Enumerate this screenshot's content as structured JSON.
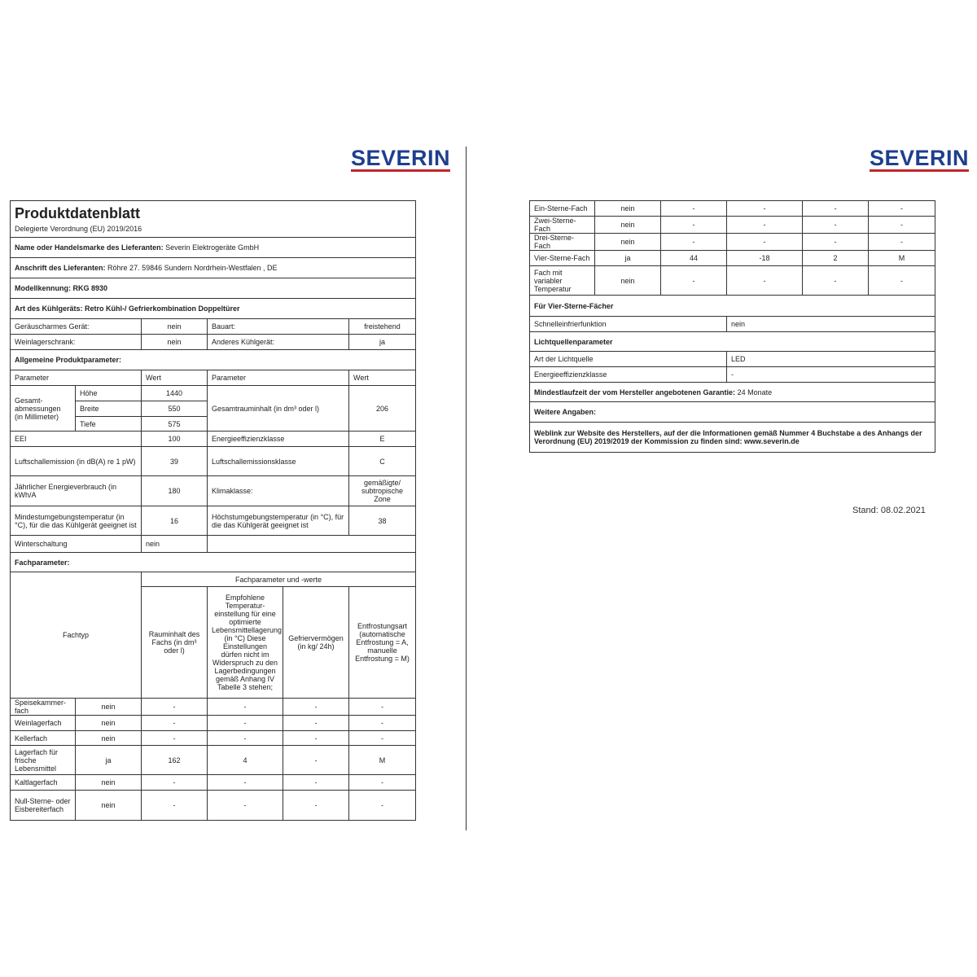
{
  "brand": "SEVERIN",
  "colors": {
    "logo_text": "#1d3f8e",
    "logo_underline": "#c0272d"
  },
  "left": {
    "title": "Produktdatenblatt",
    "subtitle": "Delegierte Verordnung (EU) 2019/2016",
    "supplier_label": "Name oder Handelsmarke des Lieferanten:",
    "supplier_value": "Severin Elektrogeräte GmbH",
    "address_label": "Anschrift des Lieferanten:",
    "address_value": "Röhre 27. 59846 Sundern Nordrhein-Westfalen , DE",
    "model": "Modellkennung: RKG 8930",
    "type": "Art des Kühlgeräts: Retro Kühl-/ Gefrierkombination Doppeltürer",
    "r1": [
      "Geräuscharmes Gerät:",
      "nein",
      "Bauart:",
      "freistehend"
    ],
    "r2": [
      "Weinlagerschrank:",
      "nein",
      "Anderes Kühlgerät:",
      "ja"
    ],
    "general": "Allgemeine Produktparameter:",
    "head": [
      "Parameter",
      "Wert",
      "Parameter",
      "Wert"
    ],
    "dims": {
      "label": "Gesamt-abmessungen (in Millimeter)",
      "h": [
        "Höhe",
        "1440"
      ],
      "b": [
        "Breite",
        "550"
      ],
      "t": [
        "Tiefe",
        "575"
      ],
      "vol_label": "Gesamtrauminhalt (in dm³ oder l)",
      "vol": "206"
    },
    "eei": [
      "EEI",
      "100",
      "Energieeffizienzklasse",
      "E"
    ],
    "noise": [
      "Luftschallemission (in dB(A) re 1 pW)",
      "39",
      "Luftschallemissionsklasse",
      "C"
    ],
    "energy": [
      "Jährlicher Energieverbrauch (in kWh/A",
      "180",
      "Klimaklasse:",
      "gemäßigte/ subtropische Zone"
    ],
    "temp": [
      "Mindestumgebungstemperatur (in °C), für die das Kühlgerät geeignet ist",
      "16",
      "Höchstumgebungstemperatur (in °C), für die das Kühlgerät geeignet ist",
      "38"
    ],
    "winter": [
      "Winterschaltung",
      "nein"
    ],
    "fach": "Fachparameter:",
    "fach_group": "Fachparameter und -werte",
    "fach_head": [
      "Fachtyp",
      "Rauminhalt des Fachs (in dm³ oder l)",
      "Empfohlene Temperatur-einstellung für eine optimierte Lebensmittellagerung (in °C) Diese Einstellungen dürfen nicht im Widerspruch zu den Lagerbedingungen gemäß Anhang IV Tabelle 3 stehen;",
      "Gefriervermögen (in kg/ 24h)",
      "Entfrostungsart (automatische Entfrostung = A, manuelle Entfrostung = M)"
    ],
    "fach_rows": [
      [
        "Speisekammer-fach",
        "nein",
        "-",
        "-",
        "-",
        "-"
      ],
      [
        "Weinlagerfach",
        "nein",
        "-",
        "-",
        "-",
        "-"
      ],
      [
        "Kellerfach",
        "nein",
        "-",
        "-",
        "-",
        "-"
      ],
      [
        "Lagerfach für frische Lebensmittel",
        "ja",
        "162",
        "4",
        "-",
        "M"
      ],
      [
        "Kaltlagerfach",
        "nein",
        "-",
        "-",
        "-",
        "-"
      ],
      [
        "Null-Sterne- oder Eisbereiterfach",
        "nein",
        "-",
        "-",
        "-",
        "-"
      ]
    ]
  },
  "right": {
    "fach_rows": [
      [
        "Ein-Sterne-Fach",
        "nein",
        "-",
        "-",
        "-",
        "-"
      ],
      [
        "Zwei-Sterne-Fach",
        "nein",
        "-",
        "-",
        "-",
        "-"
      ],
      [
        "Drei-Sterne-Fach",
        "nein",
        "-",
        "-",
        "-",
        "-"
      ],
      [
        "Vier-Sterne-Fach",
        "ja",
        "44",
        "-18",
        "2",
        "M"
      ],
      [
        "Fach mit variabler Temperatur",
        "nein",
        "-",
        "-",
        "-",
        "-"
      ]
    ],
    "four_star": "Für Vier-Sterne-Fächer",
    "quick_freeze": [
      "Schnelleinfrierfunktion",
      "nein"
    ],
    "light": "Lichtquellenparameter",
    "light_type": [
      "Art der Lichtquelle",
      "LED"
    ],
    "light_class": [
      "Energieeffizienzklasse",
      "-"
    ],
    "warranty_label": "Mindestlaufzeit der vom Hersteller angebotenen Garantie:",
    "warranty_value": "24 Monate",
    "more": "Weitere Angaben:",
    "weblink": "Weblink zur Website des Herstellers, auf der die Informationen gemäß Nummer 4 Buchstabe a des Anhangs der Verordnung (EU) 2019/2019 der Kommission zu finden sind: www.severin.de",
    "stand": "Stand: 08.02.2021"
  }
}
